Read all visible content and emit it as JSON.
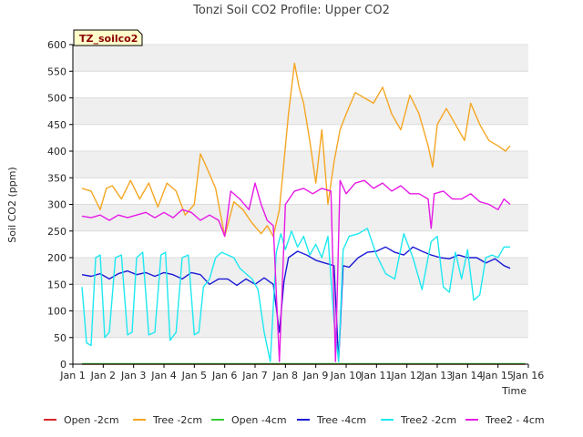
{
  "chart_data": {
    "type": "line",
    "title": "Tonzi Soil CO2 Profile: Upper CO2",
    "xlabel": "Time",
    "ylabel": "Soil CO2 (ppm)",
    "badge": "TZ_soilco2",
    "ylim": [
      0,
      600
    ],
    "xlim": [
      1,
      16
    ],
    "y_ticks": [
      0,
      50,
      100,
      150,
      200,
      250,
      300,
      350,
      400,
      450,
      500,
      550,
      600
    ],
    "x_ticks": [
      {
        "value": 1,
        "label": "Jan 1"
      },
      {
        "value": 2,
        "label": "Jan 2"
      },
      {
        "value": 3,
        "label": "Jan 3"
      },
      {
        "value": 4,
        "label": "Jan 4"
      },
      {
        "value": 5,
        "label": "Jan 5"
      },
      {
        "value": 6,
        "label": "Jan 6"
      },
      {
        "value": 7,
        "label": "Jan 7"
      },
      {
        "value": 8,
        "label": "Jan 8"
      },
      {
        "value": 9,
        "label": "Jan 9"
      },
      {
        "value": 10,
        "label": "Jan 10"
      },
      {
        "value": 11,
        "label": "Jan 11"
      },
      {
        "value": 12,
        "label": "Jan 12"
      },
      {
        "value": 13,
        "label": "Jan 13"
      },
      {
        "value": 14,
        "label": "Jan 14"
      },
      {
        "value": 15,
        "label": "Jan 15"
      },
      {
        "value": 16,
        "label": "Jan 16"
      }
    ],
    "grid": "horizontal bands",
    "legend_position": "bottom",
    "series": [
      {
        "name": "Open -2cm",
        "color": "#d62728",
        "x": [
          1.3,
          15.9
        ],
        "y": [
          0,
          0
        ]
      },
      {
        "name": "Tree -2cm",
        "color": "#f5a623",
        "x": [
          1.3,
          1.6,
          1.9,
          2.1,
          2.3,
          2.6,
          2.9,
          3.2,
          3.5,
          3.8,
          4.1,
          4.4,
          4.7,
          5.0,
          5.2,
          5.4,
          5.7,
          6.0,
          6.3,
          6.6,
          6.9,
          7.2,
          7.4,
          7.6,
          7.8,
          7.95,
          8.1,
          8.3,
          8.45,
          8.6,
          8.8,
          9.0,
          9.2,
          9.4,
          9.6,
          9.8,
          10.0,
          10.3,
          10.6,
          10.9,
          11.2,
          11.5,
          11.8,
          12.1,
          12.4,
          12.7,
          12.85,
          13.0,
          13.3,
          13.6,
          13.9,
          14.1,
          14.4,
          14.7,
          15.0,
          15.25,
          15.4
        ],
        "y": [
          330,
          325,
          290,
          330,
          335,
          310,
          345,
          310,
          340,
          295,
          340,
          325,
          280,
          300,
          395,
          370,
          330,
          240,
          305,
          290,
          265,
          245,
          260,
          240,
          290,
          380,
          470,
          565,
          520,
          490,
          420,
          340,
          440,
          300,
          380,
          440,
          470,
          510,
          500,
          490,
          520,
          470,
          440,
          505,
          470,
          410,
          370,
          450,
          480,
          450,
          420,
          490,
          450,
          420,
          410,
          400,
          410
        ]
      },
      {
        "name": "Open -4cm",
        "color": "#33cc33",
        "x": [
          1.3,
          15.9
        ],
        "y": [
          1,
          1
        ]
      },
      {
        "name": "Tree -4cm",
        "color": "#1a1ad6",
        "x": [
          1.3,
          1.6,
          1.9,
          2.2,
          2.5,
          2.8,
          3.1,
          3.4,
          3.7,
          4.0,
          4.3,
          4.6,
          4.9,
          5.2,
          5.5,
          5.8,
          6.1,
          6.4,
          6.7,
          7.0,
          7.3,
          7.6,
          7.8,
          7.95,
          8.1,
          8.4,
          8.7,
          9.0,
          9.3,
          9.6,
          9.75,
          9.9,
          10.1,
          10.4,
          10.7,
          11.0,
          11.3,
          11.6,
          11.9,
          12.2,
          12.5,
          12.8,
          13.1,
          13.4,
          13.7,
          14.0,
          14.3,
          14.6,
          14.9,
          15.2,
          15.4
        ],
        "y": [
          168,
          165,
          170,
          160,
          170,
          175,
          168,
          172,
          165,
          172,
          168,
          160,
          172,
          168,
          150,
          160,
          160,
          148,
          160,
          150,
          162,
          150,
          60,
          155,
          200,
          212,
          205,
          195,
          190,
          185,
          5,
          185,
          182,
          200,
          210,
          212,
          220,
          210,
          205,
          220,
          212,
          205,
          200,
          198,
          205,
          200,
          200,
          190,
          198,
          185,
          180
        ]
      },
      {
        "name": "Tree2 -2cm",
        "color": "#1ee8f0",
        "x": [
          1.3,
          1.45,
          1.6,
          1.75,
          1.9,
          2.05,
          2.2,
          2.4,
          2.6,
          2.8,
          2.95,
          3.1,
          3.3,
          3.5,
          3.7,
          3.9,
          4.05,
          4.2,
          4.4,
          4.6,
          4.8,
          5.0,
          5.15,
          5.3,
          5.5,
          5.7,
          5.9,
          6.1,
          6.3,
          6.5,
          6.7,
          6.9,
          7.1,
          7.3,
          7.5,
          7.7,
          7.85,
          8.0,
          8.2,
          8.4,
          8.6,
          8.8,
          9.0,
          9.2,
          9.4,
          9.6,
          9.75,
          9.9,
          10.1,
          10.4,
          10.7,
          11.0,
          11.3,
          11.6,
          11.9,
          12.2,
          12.5,
          12.8,
          13.0,
          13.2,
          13.4,
          13.6,
          13.8,
          14.0,
          14.2,
          14.4,
          14.6,
          14.8,
          15.0,
          15.2,
          15.4
        ],
        "y": [
          145,
          40,
          35,
          200,
          205,
          50,
          60,
          200,
          205,
          55,
          60,
          200,
          210,
          55,
          60,
          205,
          210,
          45,
          60,
          200,
          205,
          55,
          60,
          145,
          160,
          200,
          210,
          205,
          200,
          180,
          170,
          160,
          140,
          60,
          5,
          210,
          245,
          215,
          250,
          220,
          240,
          205,
          225,
          200,
          240,
          80,
          5,
          215,
          240,
          245,
          255,
          205,
          170,
          160,
          245,
          200,
          140,
          230,
          240,
          145,
          135,
          210,
          160,
          215,
          120,
          130,
          200,
          205,
          200,
          220,
          220
        ]
      },
      {
        "name": "Tree2 - 4cm",
        "color": "#e619e6",
        "x": [
          1.3,
          1.6,
          1.9,
          2.2,
          2.5,
          2.8,
          3.1,
          3.4,
          3.7,
          4.0,
          4.3,
          4.6,
          4.9,
          5.2,
          5.5,
          5.8,
          6.0,
          6.2,
          6.5,
          6.8,
          7.0,
          7.2,
          7.4,
          7.6,
          7.8,
          8.0,
          8.3,
          8.6,
          8.9,
          9.2,
          9.5,
          9.65,
          9.8,
          10.0,
          10.3,
          10.6,
          10.9,
          11.2,
          11.5,
          11.8,
          12.1,
          12.4,
          12.7,
          12.8,
          12.9,
          13.2,
          13.5,
          13.8,
          14.1,
          14.4,
          14.7,
          15.0,
          15.2,
          15.4
        ],
        "y": [
          278,
          275,
          280,
          270,
          280,
          275,
          280,
          285,
          275,
          285,
          275,
          290,
          285,
          270,
          280,
          270,
          240,
          325,
          310,
          290,
          340,
          300,
          270,
          260,
          5,
          300,
          325,
          330,
          320,
          330,
          325,
          5,
          345,
          320,
          340,
          345,
          330,
          340,
          325,
          335,
          320,
          320,
          310,
          255,
          320,
          325,
          310,
          310,
          320,
          305,
          300,
          290,
          310,
          300
        ]
      }
    ]
  }
}
